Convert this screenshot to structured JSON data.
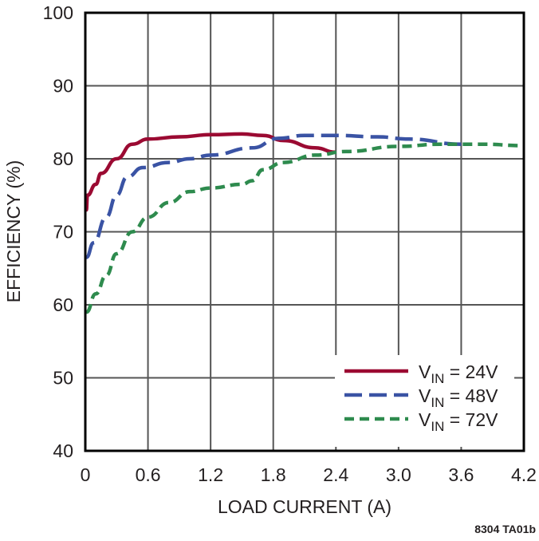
{
  "chart_data": {
    "type": "line",
    "title": "",
    "xlabel": "LOAD CURRENT (A)",
    "ylabel": "EFFICIENCY (%)",
    "xlim": [
      0,
      4.2
    ],
    "ylim": [
      40,
      100
    ],
    "xticks": [
      "0",
      "0.6",
      "1.2",
      "1.8",
      "2.4",
      "3.0",
      "3.6",
      "4.2"
    ],
    "yticks": [
      "40",
      "50",
      "60",
      "70",
      "80",
      "90",
      "100"
    ],
    "grid": true,
    "legend_placement": "bottom-right",
    "footnote": "8304 TA01b",
    "series": [
      {
        "name": "VIN = 24V",
        "name_main": "V",
        "name_sub": "IN",
        "name_rest": " = 24V",
        "color": "#9b0a32",
        "style": "solid",
        "x": [
          0.01,
          0.02,
          0.1,
          0.15,
          0.3,
          0.45,
          0.6,
          0.9,
          1.2,
          1.5,
          1.7,
          1.9,
          2.2,
          2.4
        ],
        "y": [
          73,
          75,
          76.5,
          78,
          80,
          82,
          82.7,
          83,
          83.3,
          83.4,
          83.2,
          82.5,
          81.5,
          80.9
        ]
      },
      {
        "name": "VIN = 48V",
        "name_main": "V",
        "name_sub": "IN",
        "name_rest": " = 48V",
        "color": "#3a53a4",
        "style": "long-dash",
        "x": [
          0.01,
          0.08,
          0.2,
          0.3,
          0.4,
          0.55,
          0.8,
          1.0,
          1.2,
          1.6,
          1.85,
          2.1,
          2.4,
          2.8,
          3.1,
          3.6
        ],
        "y": [
          66.5,
          68.5,
          72,
          75,
          77.5,
          78.8,
          79.5,
          80,
          80.5,
          81.5,
          82.8,
          83.2,
          83.2,
          83,
          82.7,
          82
        ]
      },
      {
        "name": "VIN = 72V",
        "name_main": "V",
        "name_sub": "IN",
        "name_rest": " = 72V",
        "color": "#2e8b4e",
        "style": "short-dash",
        "x": [
          0.01,
          0.1,
          0.2,
          0.3,
          0.45,
          0.6,
          0.8,
          1.0,
          1.2,
          1.5,
          1.6,
          1.7,
          1.9,
          2.2,
          2.5,
          3.0,
          3.4,
          3.8,
          4.2
        ],
        "y": [
          59,
          61.5,
          64,
          67,
          70,
          72,
          74,
          75.5,
          76,
          76.5,
          77,
          78.5,
          79.5,
          80.5,
          81,
          81.7,
          82,
          82,
          81.8
        ]
      }
    ]
  }
}
